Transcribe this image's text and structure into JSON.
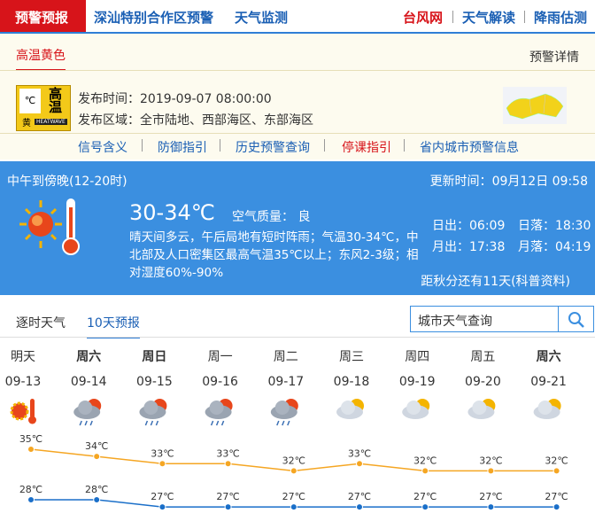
{
  "nav": {
    "tabs": [
      "预警预报",
      "深汕特别合作区预警",
      "天气监测"
    ],
    "links": [
      "台风网",
      "天气解读",
      "降雨估测"
    ]
  },
  "warning": {
    "tab": "高温黄色",
    "details_link": "预警详情",
    "icon_symbol": "℃",
    "icon_text": "高温",
    "icon_level": "黄",
    "icon_en": "HEATWAVE",
    "time_label": "发布时间：",
    "time": "2019-09-07 08:00:00",
    "area_label": "发布区域：",
    "area": "全市陆地、西部海区、东部海区",
    "links": [
      "信号含义",
      "防御指引",
      "历史预警查询",
      "停课指引",
      "省内城市预警信息"
    ]
  },
  "now": {
    "period": "中午到傍晚(12-20时)",
    "update_label": "更新时间：",
    "update": "09月12日 09:58",
    "temp": "30-34℃",
    "aqi_label": "空气质量：",
    "aqi": "良",
    "desc": "晴天间多云，午后局地有短时阵雨；气温30-34℃，中北部及人口密集区最高气温35℃以上；东风2-3级；相对湿度60%-90%",
    "sunrise": "日出：06:09",
    "sunset": "日落：18:30",
    "moonrise": "月出：17:38",
    "moonset": "月落：04:19",
    "solar_term": "距秋分还有11天(科普资料)"
  },
  "forecast": {
    "tabs": [
      "逐时天气",
      "10天预报"
    ],
    "search": "城市天气查询",
    "days": [
      "明天",
      "周六",
      "周日",
      "周一",
      "周二",
      "周三",
      "周四",
      "周五",
      "周六"
    ],
    "dates": [
      "09-13",
      "09-14",
      "09-15",
      "09-16",
      "09-17",
      "09-18",
      "09-19",
      "09-20",
      "09-21"
    ],
    "high": [
      35,
      34,
      33,
      33,
      32,
      33,
      32,
      32,
      32
    ],
    "high_labels": [
      "35℃",
      "34℃",
      "33℃",
      "33℃",
      "32℃",
      "33℃",
      "32℃",
      "32℃",
      "32℃"
    ],
    "low": [
      28,
      28,
      27,
      27,
      27,
      27,
      27,
      27,
      27
    ],
    "low_labels": [
      "28℃",
      "28℃",
      "27℃",
      "27℃",
      "27℃",
      "27℃",
      "27℃",
      "27℃",
      "27℃"
    ]
  }
}
